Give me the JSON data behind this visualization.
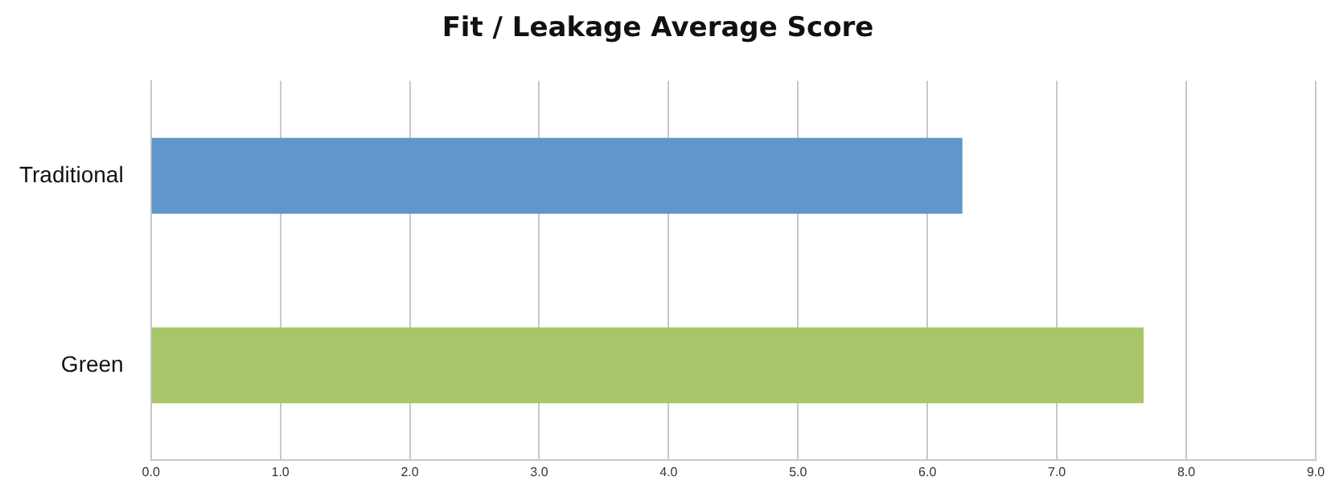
{
  "chart_data": {
    "type": "bar",
    "orientation": "horizontal",
    "title": "Fit / Leakage Average Score",
    "categories": [
      "Traditional",
      "Green"
    ],
    "values": [
      6.27,
      7.67
    ],
    "colors": [
      "#6096cc",
      "#a9c56a"
    ],
    "xlim": [
      0,
      9
    ],
    "xticks": [
      {
        "value": 0,
        "label": "0.0"
      },
      {
        "value": 1,
        "label": "1.0"
      },
      {
        "value": 2,
        "label": "2.0"
      },
      {
        "value": 3,
        "label": "3.0"
      },
      {
        "value": 4,
        "label": "4.0"
      },
      {
        "value": 5,
        "label": "5.0"
      },
      {
        "value": 6,
        "label": "6.0"
      },
      {
        "value": 7,
        "label": "7.0"
      },
      {
        "value": 8,
        "label": "8.0"
      },
      {
        "value": 9,
        "label": "9.0"
      }
    ],
    "grid": "x"
  }
}
